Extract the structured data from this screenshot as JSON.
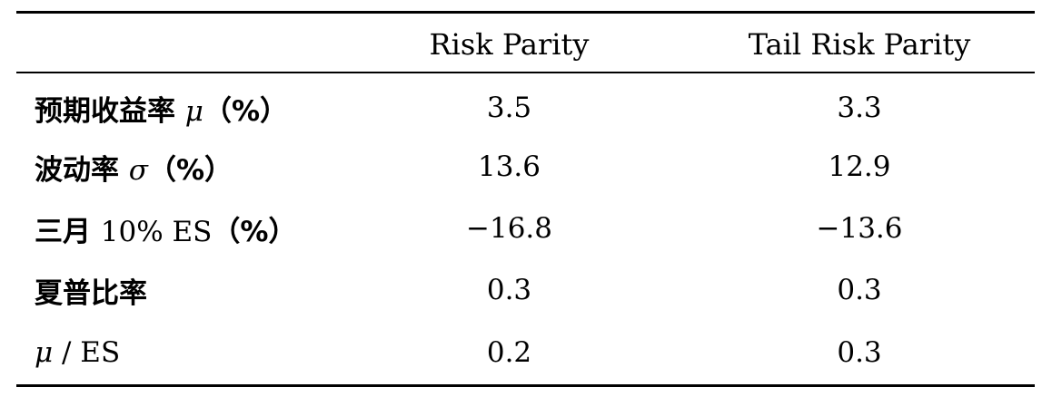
{
  "table": {
    "columns": [
      "",
      "Risk Parity",
      "Tail Risk Parity"
    ],
    "rows": [
      {
        "label_parts": [
          "预期收益率 ",
          "μ",
          "（%）"
        ],
        "values": [
          "3.5",
          "3.3"
        ]
      },
      {
        "label_parts": [
          "波动率 ",
          "σ",
          "（%）"
        ],
        "values": [
          "13.6",
          "12.9"
        ]
      },
      {
        "label_parts": [
          "三月 ",
          "10% ES",
          "（%）"
        ],
        "values": [
          "−16.8",
          "−13.6"
        ]
      },
      {
        "label_parts": [
          "夏普比率"
        ],
        "values": [
          "0.3",
          "0.3"
        ]
      },
      {
        "label_parts": [
          "μ",
          " / ES"
        ],
        "values": [
          "0.2",
          "0.3"
        ]
      }
    ]
  }
}
